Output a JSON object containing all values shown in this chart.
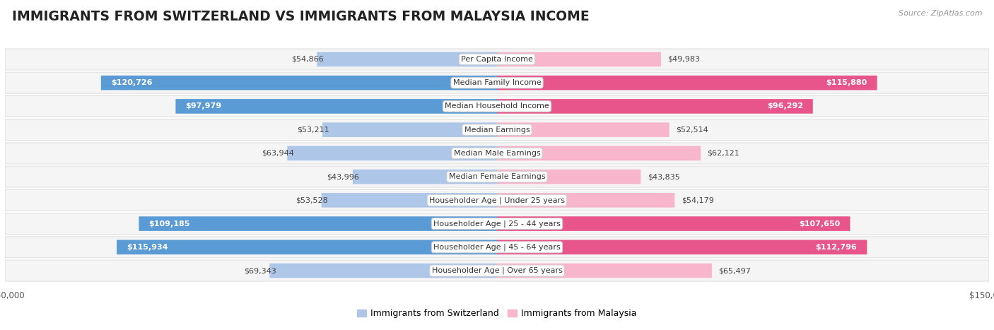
{
  "title": "IMMIGRANTS FROM SWITZERLAND VS IMMIGRANTS FROM MALAYSIA INCOME",
  "source": "Source: ZipAtlas.com",
  "categories": [
    "Per Capita Income",
    "Median Family Income",
    "Median Household Income",
    "Median Earnings",
    "Median Male Earnings",
    "Median Female Earnings",
    "Householder Age | Under 25 years",
    "Householder Age | 25 - 44 years",
    "Householder Age | 45 - 64 years",
    "Householder Age | Over 65 years"
  ],
  "switzerland_values": [
    54866,
    120726,
    97979,
    53211,
    63944,
    43996,
    53528,
    109185,
    115934,
    69343
  ],
  "malaysia_values": [
    49983,
    115880,
    96292,
    52514,
    62121,
    43835,
    54179,
    107650,
    112796,
    65497
  ],
  "switzerland_color_light": "#aec6e8",
  "switzerland_color_dark": "#5b9bd5",
  "malaysia_color_light": "#f7b6cc",
  "malaysia_color_dark": "#e8558a",
  "max_value": 150000,
  "background_color": "#ffffff",
  "row_bg_color": "#f5f5f5",
  "row_border_color": "#e0e0e0",
  "bar_height": 0.62,
  "title_fontsize": 13.5,
  "label_fontsize": 8,
  "value_fontsize": 8,
  "axis_label_fontsize": 8.5,
  "legend_fontsize": 9,
  "sw_threshold": 90000,
  "my_threshold": 90000
}
